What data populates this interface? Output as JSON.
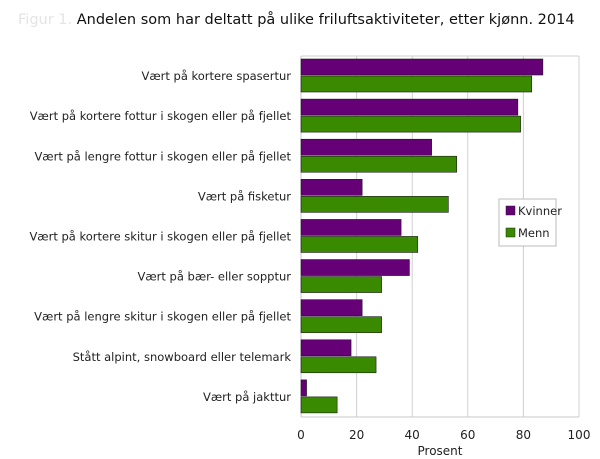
{
  "chart_data": {
    "type": "bar",
    "orientation": "horizontal",
    "title_prefix": "Figur 1.",
    "title": "Andelen som har deltatt på ulike friluftsaktiviteter, etter kjønn. 2014",
    "xlabel": "Prosent",
    "ylabel": "",
    "xlim": [
      0,
      100
    ],
    "xticks": [
      "0",
      "20",
      "40",
      "60",
      "80",
      "100"
    ],
    "grid": true,
    "legend_position": "right",
    "categories": [
      "Vært på kortere spasertur",
      "Vært på kortere fottur i skogen eller på fjellet",
      "Vært på lengre fottur i skogen eller på fjellet",
      "Vært på fisketur",
      "Vært på kortere skitur i skogen eller på fjellet",
      "Vært på bær- eller sopptur",
      "Vært på lengre skitur i skogen eller på fjellet",
      "Stått alpint, snowboard eller telemark",
      "Vært på jakttur"
    ],
    "series": [
      {
        "name": "Kvinner",
        "color": "#660077",
        "values": [
          87,
          78,
          47,
          22,
          36,
          39,
          22,
          18,
          2
        ]
      },
      {
        "name": "Menn",
        "color": "#3a8a00",
        "values": [
          83,
          79,
          56,
          53,
          42,
          29,
          29,
          27,
          13
        ]
      }
    ]
  }
}
